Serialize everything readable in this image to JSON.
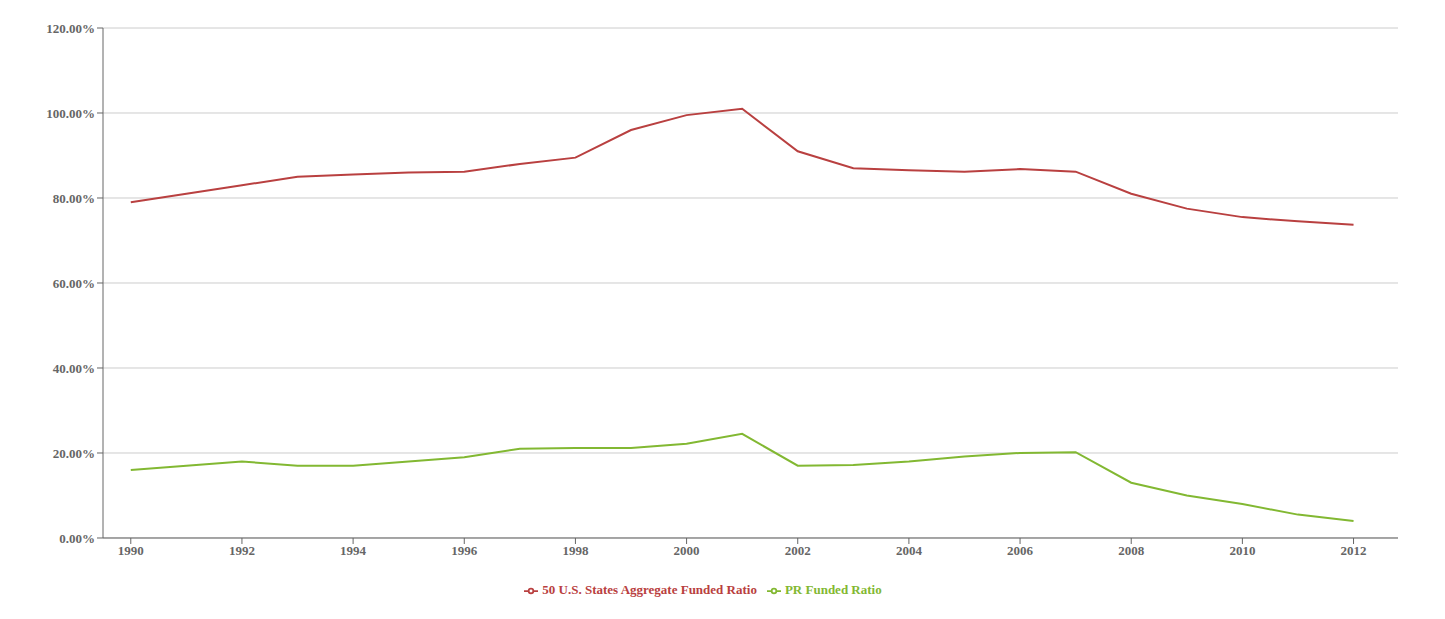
{
  "chart_data": {
    "type": "line",
    "x": [
      1990,
      1991,
      1992,
      1993,
      1994,
      1995,
      1996,
      1997,
      1998,
      1999,
      2000,
      2001,
      2002,
      2003,
      2004,
      2005,
      2006,
      2007,
      2008,
      2009,
      2010,
      2011,
      2012
    ],
    "series": [
      {
        "name": "50 U.S. States Aggregate Funded Ratio",
        "color": "#b94040",
        "values": [
          0.79,
          0.81,
          0.83,
          0.85,
          0.855,
          0.86,
          0.862,
          0.88,
          0.895,
          0.96,
          0.995,
          1.01,
          0.91,
          0.87,
          0.865,
          0.862,
          0.868,
          0.862,
          0.81,
          0.775,
          0.755,
          0.745,
          0.737
        ]
      },
      {
        "name": "PR Funded Ratio",
        "color": "#82b832",
        "values": [
          0.16,
          0.17,
          0.18,
          0.17,
          0.17,
          0.18,
          0.19,
          0.21,
          0.212,
          0.212,
          0.222,
          0.245,
          0.17,
          0.172,
          0.18,
          0.192,
          0.2,
          0.202,
          0.13,
          0.1,
          0.08,
          0.055,
          0.04
        ]
      }
    ],
    "xlim": [
      1989.5,
      2012.8
    ],
    "xticks": [
      1990,
      1992,
      1994,
      1996,
      1998,
      2000,
      2002,
      2004,
      2006,
      2008,
      2010,
      2012
    ],
    "ylim": [
      0.0,
      1.2
    ],
    "yticks": [
      {
        "value": 0.0,
        "label": "0.00%"
      },
      {
        "value": 0.2,
        "label": "20.00%"
      },
      {
        "value": 0.4,
        "label": "40.00%"
      },
      {
        "value": 0.6,
        "label": "60.00%"
      },
      {
        "value": 0.8,
        "label": "80.00%"
      },
      {
        "value": 1.0,
        "label": "100.00%"
      },
      {
        "value": 1.2,
        "label": "120.00%"
      }
    ],
    "grid": "y",
    "legend": "bottom"
  }
}
